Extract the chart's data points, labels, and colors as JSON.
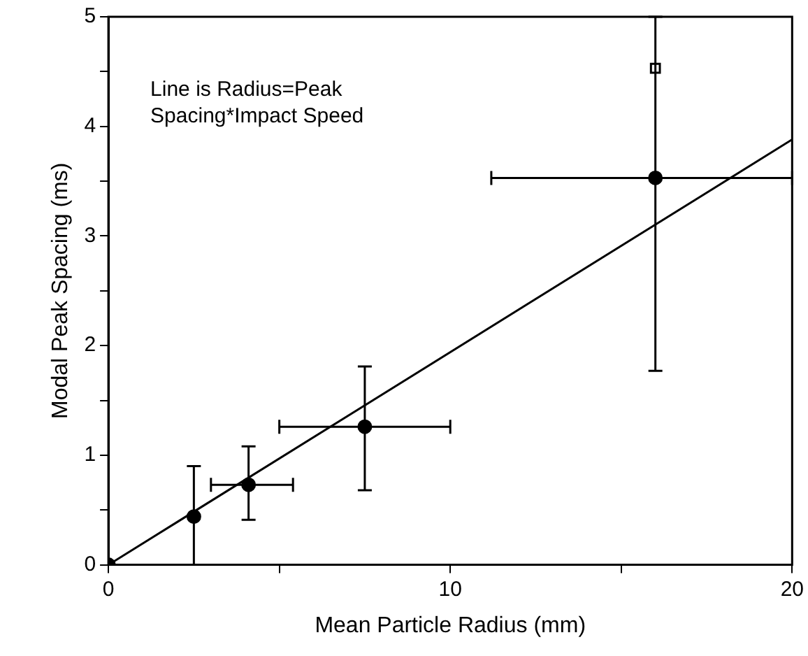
{
  "chart_data": {
    "type": "scatter",
    "xlabel": "Mean Particle Radius (mm)",
    "ylabel": "Modal Peak Spacing (ms)",
    "annotations": [
      "Line is Radius=Peak\nSpacing*Impact Speed"
    ],
    "xlim": [
      0,
      20
    ],
    "xticks": [
      0,
      {
        "value": 5,
        "label": null
      },
      10,
      {
        "value": 15,
        "label": null
      },
      20
    ],
    "ylim": [
      0,
      5
    ],
    "yticks": [
      0,
      {
        "value": 0.5,
        "label": null
      },
      1,
      {
        "value": 1.5,
        "label": null
      },
      2,
      {
        "value": 2.5,
        "label": null
      },
      3,
      {
        "value": 3.5,
        "label": null
      },
      4,
      {
        "value": 4.5,
        "label": null
      },
      5
    ],
    "grid": false,
    "legend": false,
    "series": [
      {
        "type": "scatter",
        "color": "#000000",
        "marker": "circle",
        "x": [
          0,
          2.5,
          4.1,
          7.5,
          16
        ],
        "values": [
          0,
          0.44,
          0.73,
          1.26,
          3.53
        ],
        "errors": [
          null,
          [
            0,
            0.9
          ],
          [
            0.41,
            1.08
          ],
          [
            0.68,
            1.81
          ],
          [
            1.77,
            5
          ]
        ],
        "xerrors": [
          null,
          null,
          [
            3,
            5.4
          ],
          [
            5,
            10
          ],
          [
            11.2,
            20
          ]
        ]
      },
      {
        "type": "scatter",
        "color": "#000000",
        "marker": "square",
        "x": [
          16
        ],
        "values": [
          4.53
        ]
      },
      {
        "type": "line",
        "color": "#000000",
        "marker": "none",
        "line_style": "solid",
        "x": [
          0,
          20
        ],
        "values": [
          0,
          3.88
        ]
      }
    ]
  }
}
